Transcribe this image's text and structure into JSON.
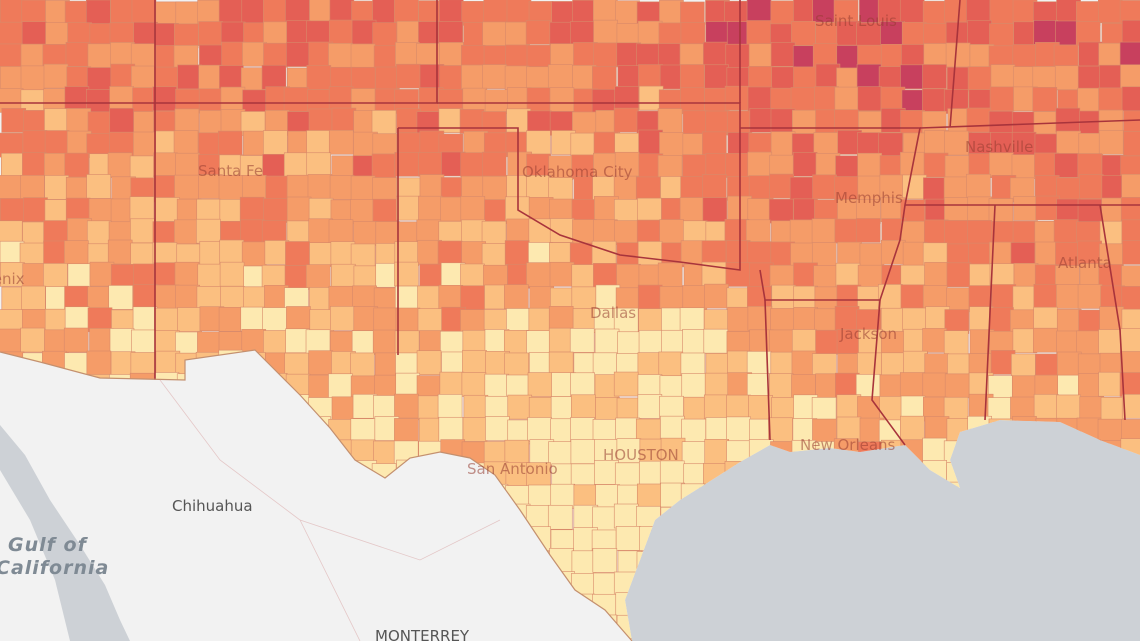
{
  "labels": [
    {
      "text": "Saint Louis"
    },
    {
      "text": "Santa Fe"
    },
    {
      "text": "Oklahoma City"
    },
    {
      "text": "Nashville"
    },
    {
      "text": "Memphis"
    },
    {
      "text": "Phoenix"
    },
    {
      "text": "Atlanta"
    },
    {
      "text": "Dallas"
    },
    {
      "text": "Jackson"
    },
    {
      "text": "New Orleans"
    },
    {
      "text": "HOUSTON"
    },
    {
      "text": "San Antonio"
    },
    {
      "text": "Chihuahua"
    },
    {
      "text": "MONTERREY"
    }
  ],
  "water_labels": [
    "Gulf of",
    "California"
  ]
}
